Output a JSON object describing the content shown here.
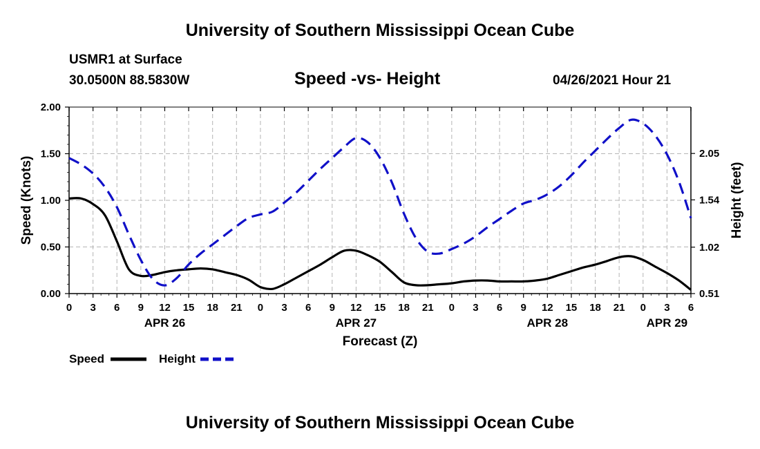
{
  "header": {
    "top_title": "University of Southern Mississippi Ocean Cube",
    "station": "USMR1 at Surface",
    "coords": "30.0500N  88.5830W",
    "chart_title": "Speed -vs- Height",
    "datetime": "04/26/2021 Hour 21",
    "bottom_title": "University of Southern Mississippi Ocean Cube"
  },
  "colors": {
    "speed": "#000000",
    "height": "#1010c8",
    "grid": "#b4b4b4"
  },
  "chart_data": {
    "type": "line",
    "title": "Speed -vs- Height",
    "xlabel": "Forecast (Z)",
    "ylabel": "Speed (Knots)",
    "y2label": "Height (feet)",
    "xlim": [
      0,
      78
    ],
    "ylim": [
      0,
      2.0
    ],
    "y2lim": [
      0.51,
      2.56
    ],
    "x_tick_hours": [
      0,
      3,
      6,
      9,
      12,
      15,
      18,
      21,
      24,
      27,
      30,
      33,
      36,
      39,
      42,
      45,
      48,
      51,
      54,
      57,
      60,
      63,
      66,
      69,
      72,
      75,
      78
    ],
    "x_tick_labels": [
      "0",
      "3",
      "6",
      "9",
      "12",
      "15",
      "18",
      "21",
      "0",
      "3",
      "6",
      "9",
      "12",
      "15",
      "18",
      "21",
      "0",
      "3",
      "6",
      "9",
      "12",
      "15",
      "18",
      "21",
      "0",
      "3",
      "6"
    ],
    "y_ticks": [
      0,
      0.5,
      1.0,
      1.5,
      2.0
    ],
    "y_tick_labels": [
      "0.00",
      "0.50",
      "1.00",
      "1.50",
      "2.00"
    ],
    "y2_ticks": [
      0.51,
      1.02,
      1.54,
      2.05
    ],
    "y2_tick_labels": [
      "0.51",
      "1.02",
      "1.54",
      "2.05"
    ],
    "date_labels": [
      {
        "hour": 12,
        "label": "APR 26"
      },
      {
        "hour": 36,
        "label": "APR 27"
      },
      {
        "hour": 60,
        "label": "APR 28"
      },
      {
        "hour": 75,
        "label": "APR 29"
      }
    ],
    "series": [
      {
        "name": "Speed",
        "axis": "left",
        "style": "solid",
        "x": [
          0,
          1.5,
          3,
          4.5,
          6,
          7.5,
          9,
          10.5,
          12,
          13.5,
          15,
          16.5,
          18,
          19.5,
          21,
          22.5,
          24,
          25.5,
          27,
          28.5,
          30,
          31.5,
          33,
          34.5,
          36,
          37.5,
          39,
          40.5,
          42,
          43.5,
          45,
          46.5,
          48,
          49.5,
          51,
          52.5,
          54,
          55.5,
          57,
          58.5,
          60,
          61.5,
          63,
          64.5,
          66,
          67.5,
          69,
          70.5,
          72,
          73.5,
          75,
          76.5,
          78
        ],
        "values": [
          1.02,
          1.02,
          0.96,
          0.84,
          0.56,
          0.26,
          0.19,
          0.2,
          0.23,
          0.25,
          0.26,
          0.27,
          0.26,
          0.23,
          0.2,
          0.15,
          0.07,
          0.05,
          0.1,
          0.17,
          0.24,
          0.31,
          0.39,
          0.46,
          0.46,
          0.41,
          0.34,
          0.23,
          0.12,
          0.09,
          0.09,
          0.1,
          0.11,
          0.13,
          0.14,
          0.14,
          0.13,
          0.13,
          0.13,
          0.14,
          0.16,
          0.2,
          0.24,
          0.28,
          0.31,
          0.35,
          0.39,
          0.4,
          0.36,
          0.29,
          0.22,
          0.14,
          0.04
        ]
      },
      {
        "name": "Height",
        "axis": "right",
        "style": "dashed",
        "x": [
          0,
          1.5,
          3,
          4.5,
          6,
          7.5,
          9,
          10.5,
          12,
          13.5,
          15,
          16.5,
          18,
          19.5,
          21,
          22.5,
          24,
          25.5,
          27,
          28.5,
          30,
          31.5,
          33,
          34.5,
          36,
          37.5,
          39,
          40.5,
          42,
          43.5,
          45,
          46.5,
          48,
          49.5,
          51,
          52.5,
          54,
          55.5,
          57,
          58.5,
          60,
          61.5,
          63,
          64.5,
          66,
          67.5,
          69,
          70.5,
          72,
          73.5,
          75,
          76.5,
          78
        ],
        "values": [
          2.0,
          1.93,
          1.83,
          1.68,
          1.46,
          1.16,
          0.88,
          0.67,
          0.6,
          0.68,
          0.83,
          0.95,
          1.05,
          1.15,
          1.25,
          1.34,
          1.38,
          1.41,
          1.51,
          1.62,
          1.75,
          1.88,
          2.0,
          2.12,
          2.22,
          2.17,
          2.0,
          1.73,
          1.39,
          1.12,
          0.97,
          0.95,
          1.0,
          1.06,
          1.14,
          1.24,
          1.33,
          1.42,
          1.5,
          1.54,
          1.6,
          1.69,
          1.81,
          1.95,
          2.08,
          2.21,
          2.33,
          2.42,
          2.38,
          2.25,
          2.04,
          1.74,
          1.34
        ]
      }
    ],
    "legend": [
      {
        "label": "Speed",
        "style": "solid"
      },
      {
        "label": "Height",
        "style": "dashed"
      }
    ],
    "legend_position": "bottom-left",
    "grid": true
  }
}
